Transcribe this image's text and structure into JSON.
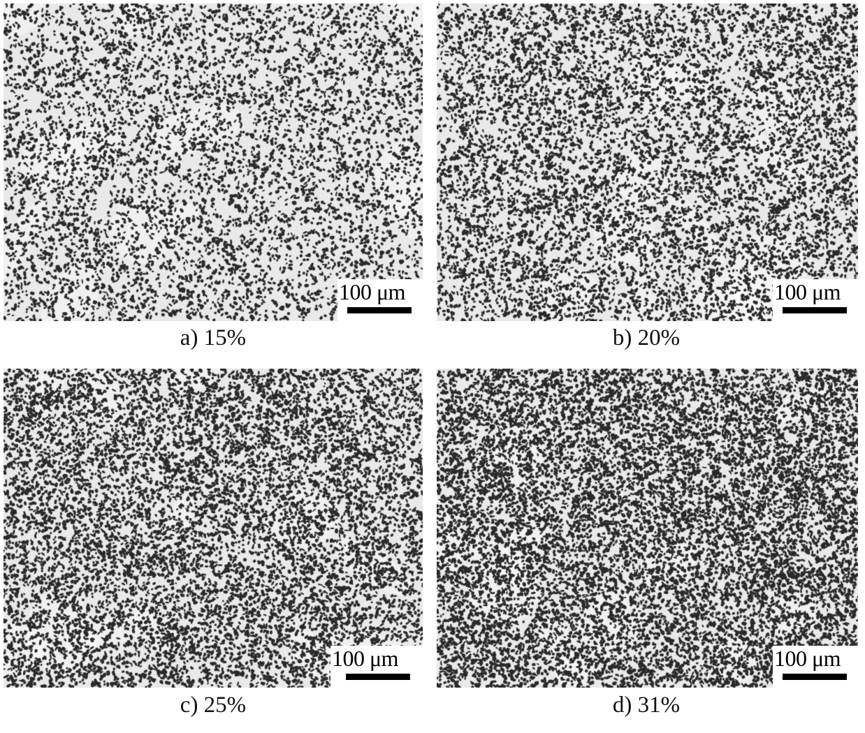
{
  "panels": [
    {
      "label": "a) 15%",
      "scale_bar": "100 μm",
      "fraction": 0.15
    },
    {
      "label": "b) 20%",
      "scale_bar": "100 μm",
      "fraction": 0.2
    },
    {
      "label": "c) 25%",
      "scale_bar": "100 μm",
      "fraction": 0.25
    },
    {
      "label": "d) 31%",
      "scale_bar": "100 μm",
      "fraction": 0.31
    }
  ],
  "colors": {
    "background": "#e9e9e9",
    "particle": "#2a2a2a"
  }
}
